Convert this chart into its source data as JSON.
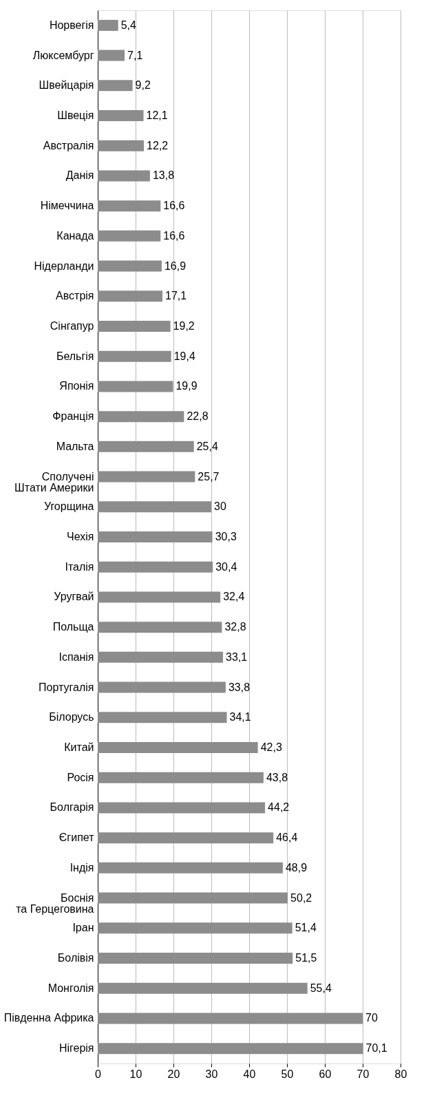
{
  "chart_data": {
    "type": "bar",
    "orientation": "horizontal",
    "categories": [
      "Норвегія",
      "Люксембург",
      "Швейцарія",
      "Швеція",
      "Австралія",
      "Данія",
      "Німеччина",
      "Канада",
      "Нідерланди",
      "Австрія",
      "Сінгапур",
      "Бельгія",
      "Японія",
      "Франція",
      "Мальта",
      "Сполучені Штати Америки",
      "Угорщина",
      "Чехія",
      "Італія",
      "Уругвай",
      "Польща",
      "Іспанія",
      "Португалія",
      "Білорусь",
      "Китай",
      "Росія",
      "Болгарія",
      "Єгипет",
      "Індія",
      "Боснія та Герцеговина",
      "Іран",
      "Болівія",
      "Монголія",
      "Південна Африка",
      "Нігерія"
    ],
    "values": [
      5.4,
      7.1,
      9.2,
      12.1,
      12.2,
      13.8,
      16.6,
      16.6,
      16.9,
      17.1,
      19.2,
      19.4,
      19.9,
      22.8,
      25.4,
      25.7,
      30,
      30.3,
      30.4,
      32.4,
      32.8,
      33.1,
      33.8,
      34.1,
      42.3,
      43.8,
      44.2,
      46.4,
      48.9,
      50.2,
      51.4,
      51.5,
      55.4,
      70,
      70.1
    ],
    "value_labels": [
      "5,4",
      "7,1",
      "9,2",
      "12,1",
      "12,2",
      "13,8",
      "16,6",
      "16,6",
      "16,9",
      "17,1",
      "19,2",
      "19,4",
      "19,9",
      "22,8",
      "25,4",
      "25,7",
      "30",
      "30,3",
      "30,4",
      "32,4",
      "32,8",
      "33,1",
      "33,8",
      "34,1",
      "42,3",
      "43,8",
      "44,2",
      "46,4",
      "48,9",
      "50,2",
      "51,4",
      "51,5",
      "55,4",
      "70",
      "70,1"
    ],
    "color": "#8c8c8c",
    "xlim": [
      0,
      80
    ],
    "xticks": [
      0,
      10,
      20,
      30,
      40,
      50,
      60,
      70,
      80
    ],
    "grid": "x"
  }
}
